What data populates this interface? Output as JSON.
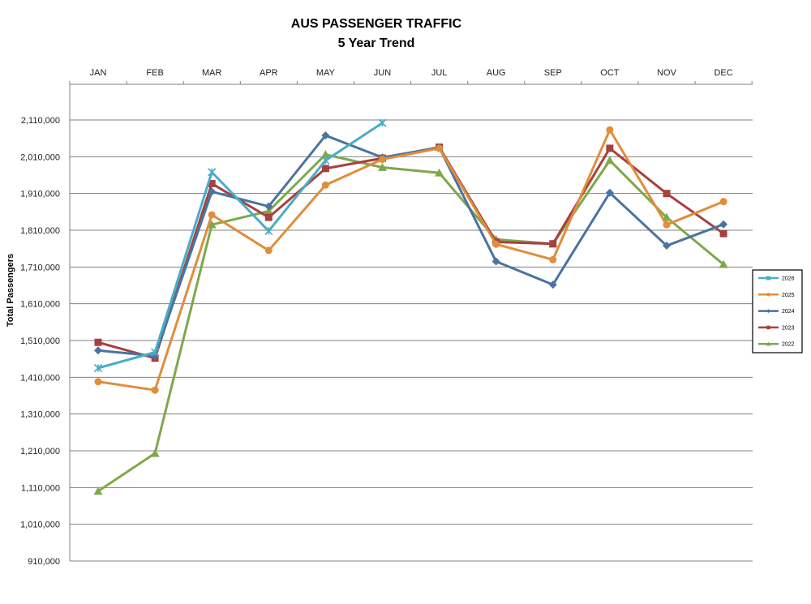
{
  "chart_data": {
    "type": "line",
    "title": "AUS PASSENGER TRAFFIC",
    "subtitle": "5 Year Trend",
    "ylabel": "Total Passengers",
    "xlabel": "",
    "categories": [
      "JAN",
      "FEB",
      "MAR",
      "APR",
      "MAY",
      "JUN",
      "JUL",
      "AUG",
      "SEP",
      "OCT",
      "NOV",
      "DEC"
    ],
    "y_ticks": [
      "2,110,000",
      "2,010,000",
      "1,910,000",
      "1,810,000",
      "1,710,000",
      "1,610,000",
      "1,510,000",
      "1,410,000",
      "1,310,000",
      "1,210,000",
      "1,110,000",
      "1,010,000",
      "910,000"
    ],
    "ylim": [
      910000,
      2110000
    ],
    "grid": true,
    "legend_position": "right",
    "series": [
      {
        "name": "2026",
        "color": "#4bacc6",
        "marker": "star",
        "values": [
          1435000,
          1478000,
          1968000,
          1808000,
          2000000,
          2102000,
          null,
          null,
          null,
          null,
          null,
          null
        ]
      },
      {
        "name": "2025",
        "color": "#e08d3c",
        "marker": "circle",
        "values": [
          1398000,
          1375000,
          1852000,
          1755000,
          1933000,
          2003000,
          2033000,
          1772000,
          1730000,
          2083000,
          1825000,
          1888000
        ]
      },
      {
        "name": "2024",
        "color": "#4a73a0",
        "marker": "diamond",
        "values": [
          1483000,
          1468000,
          1915000,
          1875000,
          2068000,
          2008000,
          2035000,
          1725000,
          1662000,
          1912000,
          1768000,
          1826000
        ]
      },
      {
        "name": "2023",
        "color": "#a8403e",
        "marker": "square",
        "values": [
          1505000,
          1462000,
          1937000,
          1845000,
          1978000,
          2006000,
          2036000,
          1778000,
          1773000,
          2033000,
          1910000,
          1801000
        ]
      },
      {
        "name": "2022",
        "color": "#7ea84a",
        "marker": "triangle",
        "values": [
          1100000,
          1203000,
          1825000,
          1862000,
          2016000,
          1981000,
          1966000,
          1785000,
          1773000,
          2000000,
          1845000,
          1717000
        ]
      }
    ]
  }
}
